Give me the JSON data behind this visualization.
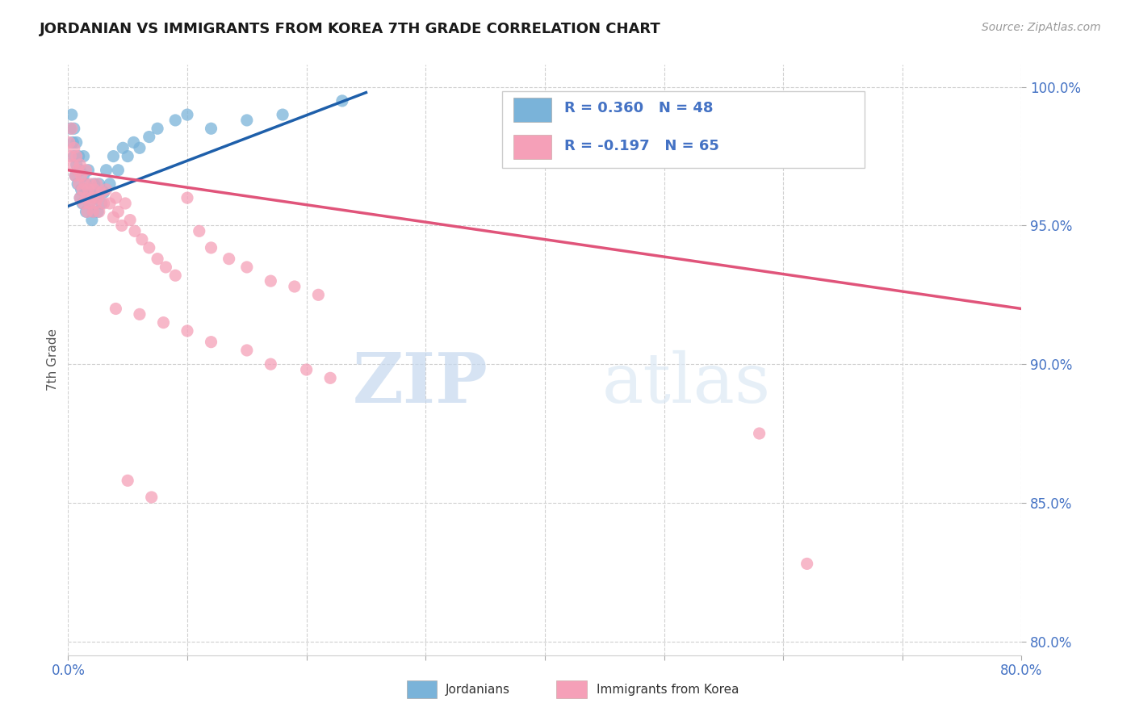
{
  "title": "JORDANIAN VS IMMIGRANTS FROM KOREA 7TH GRADE CORRELATION CHART",
  "source_text": "Source: ZipAtlas.com",
  "ylabel": "7th Grade",
  "xmin": 0.0,
  "xmax": 0.8,
  "ymin": 0.795,
  "ymax": 1.008,
  "yticks": [
    0.8,
    0.85,
    0.9,
    0.95,
    1.0
  ],
  "yticklabels": [
    "80.0%",
    "85.0%",
    "90.0%",
    "95.0%",
    "100.0%"
  ],
  "xtick_vals": [
    0.0,
    0.1,
    0.2,
    0.3,
    0.4,
    0.5,
    0.6,
    0.7,
    0.8
  ],
  "xtick_labels": [
    "0.0%",
    "",
    "",
    "",
    "",
    "",
    "",
    "",
    "80.0%"
  ],
  "blue_color": "#7ab3d9",
  "pink_color": "#f5a0b8",
  "blue_line_color": "#1e5faa",
  "pink_line_color": "#e0547a",
  "legend_R1": "R = 0.360",
  "legend_N1": "N = 48",
  "legend_R2": "R = -0.197",
  "legend_N2": "N = 65",
  "watermark_ZIP": "ZIP",
  "watermark_atlas": "atlas",
  "blue_scatter_x": [
    0.002,
    0.003,
    0.004,
    0.005,
    0.005,
    0.006,
    0.007,
    0.007,
    0.008,
    0.009,
    0.01,
    0.01,
    0.011,
    0.012,
    0.013,
    0.013,
    0.014,
    0.015,
    0.015,
    0.016,
    0.017,
    0.018,
    0.019,
    0.02,
    0.02,
    0.021,
    0.022,
    0.023,
    0.025,
    0.026,
    0.028,
    0.03,
    0.032,
    0.035,
    0.038,
    0.042,
    0.046,
    0.05,
    0.055,
    0.06,
    0.068,
    0.075,
    0.09,
    0.1,
    0.12,
    0.15,
    0.18,
    0.23
  ],
  "blue_scatter_y": [
    0.985,
    0.99,
    0.98,
    0.975,
    0.985,
    0.968,
    0.972,
    0.98,
    0.965,
    0.975,
    0.96,
    0.97,
    0.963,
    0.958,
    0.968,
    0.975,
    0.962,
    0.955,
    0.965,
    0.96,
    0.97,
    0.958,
    0.963,
    0.952,
    0.962,
    0.955,
    0.965,
    0.96,
    0.955,
    0.965,
    0.958,
    0.962,
    0.97,
    0.965,
    0.975,
    0.97,
    0.978,
    0.975,
    0.98,
    0.978,
    0.982,
    0.985,
    0.988,
    0.99,
    0.985,
    0.988,
    0.99,
    0.995
  ],
  "pink_scatter_x": [
    0.001,
    0.002,
    0.003,
    0.004,
    0.005,
    0.006,
    0.007,
    0.008,
    0.009,
    0.01,
    0.01,
    0.011,
    0.012,
    0.013,
    0.014,
    0.015,
    0.015,
    0.016,
    0.017,
    0.018,
    0.019,
    0.02,
    0.021,
    0.022,
    0.023,
    0.024,
    0.025,
    0.026,
    0.028,
    0.03,
    0.032,
    0.035,
    0.038,
    0.04,
    0.042,
    0.045,
    0.048,
    0.052,
    0.056,
    0.062,
    0.068,
    0.075,
    0.082,
    0.09,
    0.1,
    0.11,
    0.12,
    0.135,
    0.15,
    0.17,
    0.19,
    0.21,
    0.04,
    0.06,
    0.08,
    0.1,
    0.12,
    0.15,
    0.17,
    0.2,
    0.22,
    0.05,
    0.07,
    0.58,
    0.62
  ],
  "pink_scatter_y": [
    0.98,
    0.975,
    0.985,
    0.972,
    0.978,
    0.968,
    0.975,
    0.97,
    0.965,
    0.972,
    0.96,
    0.968,
    0.963,
    0.958,
    0.965,
    0.96,
    0.97,
    0.955,
    0.963,
    0.958,
    0.965,
    0.96,
    0.955,
    0.963,
    0.958,
    0.965,
    0.96,
    0.955,
    0.962,
    0.958,
    0.963,
    0.958,
    0.953,
    0.96,
    0.955,
    0.95,
    0.958,
    0.952,
    0.948,
    0.945,
    0.942,
    0.938,
    0.935,
    0.932,
    0.96,
    0.948,
    0.942,
    0.938,
    0.935,
    0.93,
    0.928,
    0.925,
    0.92,
    0.918,
    0.915,
    0.912,
    0.908,
    0.905,
    0.9,
    0.898,
    0.895,
    0.858,
    0.852,
    0.875,
    0.828
  ],
  "pink_line_x0": 0.0,
  "pink_line_x1": 0.8,
  "pink_line_y0": 0.97,
  "pink_line_y1": 0.92,
  "blue_line_x0": 0.0,
  "blue_line_x1": 0.25,
  "blue_line_y0": 0.957,
  "blue_line_y1": 0.998
}
